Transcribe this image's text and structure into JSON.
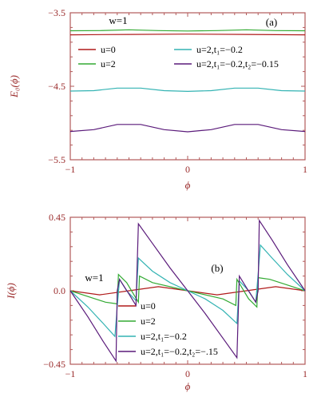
{
  "chart_data": [
    {
      "type": "line",
      "panel_label": "(a)",
      "annotation": "w=1",
      "xlabel": "ϕ",
      "ylabel": "E₀(ϕ)",
      "xlim": [
        -1,
        1
      ],
      "ylim": [
        -5.5,
        -3.5
      ],
      "xticks": [
        "-1",
        "0",
        "1"
      ],
      "yticks": [
        "-3.5",
        "-4.5",
        "-5.5"
      ],
      "series": [
        {
          "name": "u=0",
          "color": "#b01a1a",
          "points": [
            [
              -1,
              -3.8
            ],
            [
              -0.5,
              -3.795
            ],
            [
              0,
              -3.79
            ],
            [
              0.5,
              -3.795
            ],
            [
              1,
              -3.8
            ]
          ]
        },
        {
          "name": "u=2",
          "color": "#33aa33",
          "points": [
            [
              -1,
              -3.745
            ],
            [
              -0.75,
              -3.742
            ],
            [
              -0.5,
              -3.732
            ],
            [
              -0.25,
              -3.742
            ],
            [
              0,
              -3.748
            ],
            [
              0.25,
              -3.742
            ],
            [
              0.5,
              -3.732
            ],
            [
              0.75,
              -3.742
            ],
            [
              1,
              -3.745
            ]
          ]
        },
        {
          "name": "u=2,t₁=−0.2",
          "color": "#33b3b3",
          "points": [
            [
              -1,
              -4.565
            ],
            [
              -0.8,
              -4.56
            ],
            [
              -0.6,
              -4.525
            ],
            [
              -0.4,
              -4.525
            ],
            [
              -0.2,
              -4.56
            ],
            [
              0,
              -4.57
            ],
            [
              0.2,
              -4.56
            ],
            [
              0.4,
              -4.525
            ],
            [
              0.6,
              -4.525
            ],
            [
              0.8,
              -4.56
            ],
            [
              1,
              -4.565
            ]
          ]
        },
        {
          "name": "u=2,t₁=−0.2,t₂=−0.15",
          "color": "#5a1a7a",
          "points": [
            [
              -1,
              -5.115
            ],
            [
              -0.8,
              -5.09
            ],
            [
              -0.6,
              -5.02
            ],
            [
              -0.4,
              -5.02
            ],
            [
              -0.2,
              -5.09
            ],
            [
              0,
              -5.12
            ],
            [
              0.2,
              -5.09
            ],
            [
              0.4,
              -5.02
            ],
            [
              0.6,
              -5.02
            ],
            [
              0.8,
              -5.09
            ],
            [
              1,
              -5.115
            ]
          ]
        }
      ]
    },
    {
      "type": "line",
      "panel_label": "(b)",
      "annotation": "w=1",
      "xlabel": "ϕ",
      "ylabel": "I(ϕ)",
      "xlim": [
        -1,
        1
      ],
      "ylim": [
        -0.45,
        0.45
      ],
      "xticks": [
        "-1",
        "0",
        "1"
      ],
      "yticks": [
        "0.45",
        "0.0",
        "-0.45"
      ],
      "series": [
        {
          "name": "u=0",
          "color": "#b01a1a",
          "points": [
            [
              -1,
              0
            ],
            [
              -0.75,
              -0.025
            ],
            [
              -0.5,
              0
            ],
            [
              -0.25,
              0.025
            ],
            [
              0,
              0
            ],
            [
              0.25,
              -0.025
            ],
            [
              0.5,
              0
            ],
            [
              0.75,
              0.025
            ],
            [
              1,
              0
            ]
          ]
        },
        {
          "name": "u=2",
          "color": "#33aa33",
          "points": [
            [
              -1,
              0
            ],
            [
              -0.85,
              -0.035
            ],
            [
              -0.7,
              -0.07
            ],
            [
              -0.6,
              -0.08
            ],
            [
              -0.59,
              0.1
            ],
            [
              -0.52,
              0.05
            ],
            [
              -0.42,
              -0.07
            ],
            [
              -0.41,
              0.09
            ],
            [
              -0.3,
              0.05
            ],
            [
              0,
              0
            ],
            [
              0.3,
              -0.05
            ],
            [
              0.41,
              -0.09
            ],
            [
              0.42,
              0.07
            ],
            [
              0.52,
              -0.05
            ],
            [
              0.59,
              -0.1
            ],
            [
              0.6,
              0.08
            ],
            [
              0.7,
              0.07
            ],
            [
              0.85,
              0.035
            ],
            [
              1,
              0
            ]
          ]
        },
        {
          "name": "u=2,t₁=−0.2",
          "color": "#33b3b3",
          "points": [
            [
              -1,
              0
            ],
            [
              -0.85,
              -0.1
            ],
            [
              -0.72,
              -0.2
            ],
            [
              -0.62,
              -0.28
            ],
            [
              -0.6,
              -0.1
            ],
            [
              -0.58,
              0.07
            ],
            [
              -0.52,
              0.0
            ],
            [
              -0.44,
              -0.06
            ],
            [
              -0.42,
              0.2
            ],
            [
              -0.3,
              0.12
            ],
            [
              -0.15,
              0.05
            ],
            [
              0,
              0
            ],
            [
              0.15,
              -0.05
            ],
            [
              0.3,
              -0.12
            ],
            [
              0.42,
              -0.2
            ],
            [
              0.44,
              0.06
            ],
            [
              0.52,
              0.0
            ],
            [
              0.58,
              -0.07
            ],
            [
              0.6,
              0.1
            ],
            [
              0.62,
              0.28
            ],
            [
              0.72,
              0.2
            ],
            [
              0.85,
              0.1
            ],
            [
              1,
              0
            ]
          ]
        },
        {
          "name": "u=2,t₁=−0.2,t₂=−.15",
          "color": "#5a1a7a",
          "points": [
            [
              -1,
              0
            ],
            [
              -0.85,
              -0.16
            ],
            [
              -0.72,
              -0.31
            ],
            [
              -0.61,
              -0.43
            ],
            [
              -0.6,
              0.0
            ],
            [
              -0.58,
              0.07
            ],
            [
              -0.5,
              -0.02
            ],
            [
              -0.44,
              -0.09
            ],
            [
              -0.42,
              0.41
            ],
            [
              -0.3,
              0.29
            ],
            [
              -0.15,
              0.14
            ],
            [
              0,
              0
            ],
            [
              0.15,
              -0.14
            ],
            [
              0.3,
              -0.29
            ],
            [
              0.42,
              -0.41
            ],
            [
              0.44,
              0.09
            ],
            [
              0.5,
              0.02
            ],
            [
              0.58,
              -0.07
            ],
            [
              0.6,
              0.0
            ],
            [
              0.61,
              0.43
            ],
            [
              0.72,
              0.31
            ],
            [
              0.85,
              0.16
            ],
            [
              1,
              0
            ]
          ]
        }
      ]
    }
  ]
}
